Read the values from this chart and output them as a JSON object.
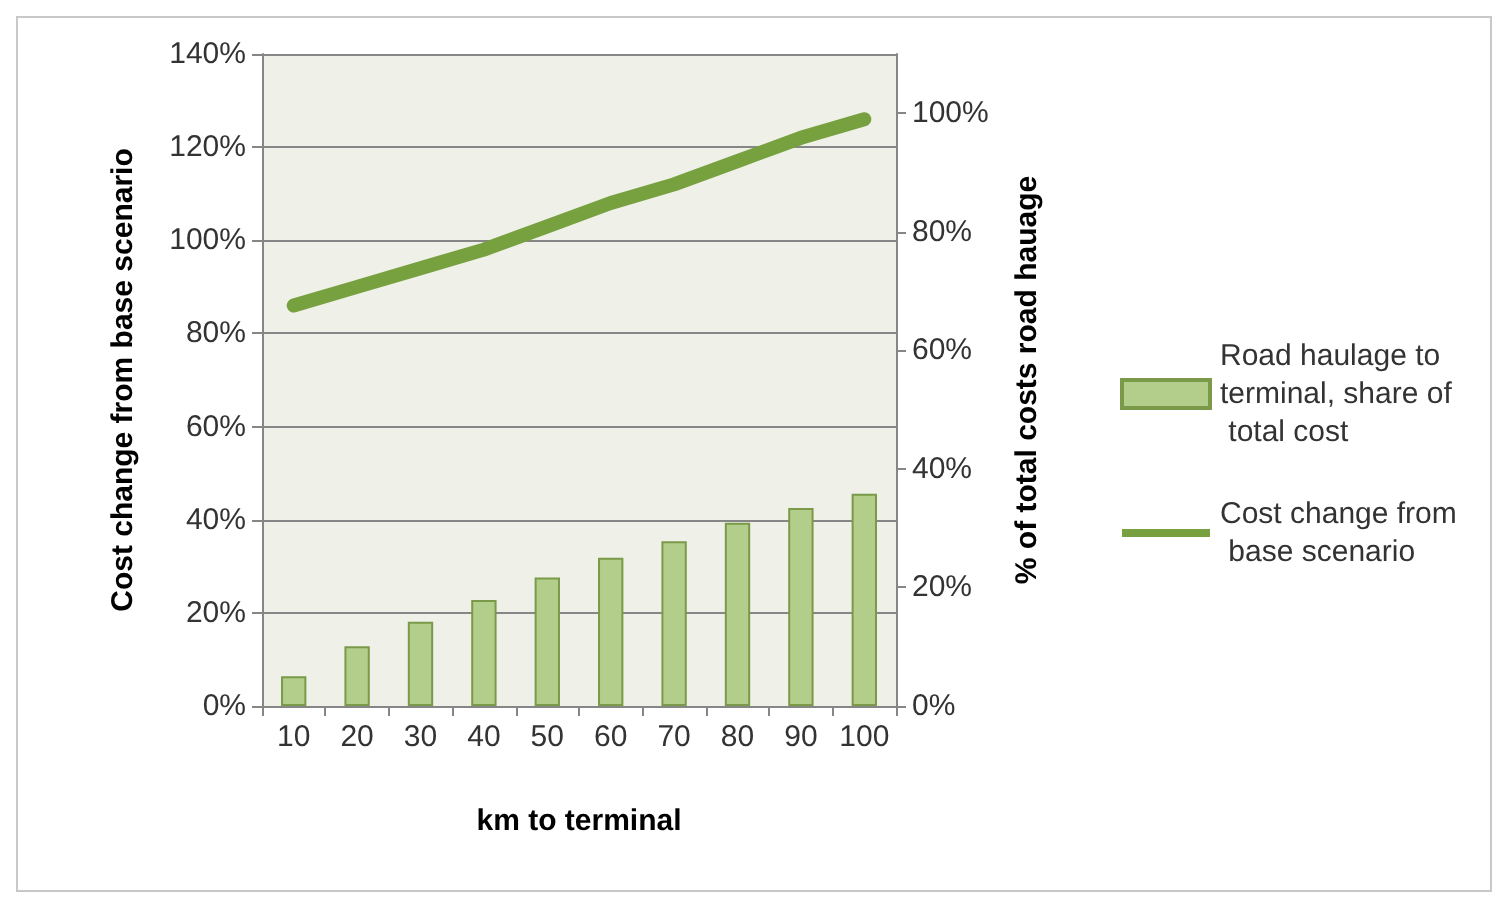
{
  "chart_data": {
    "type": "bar",
    "xlabel": "km to terminal",
    "ylabel": "Cost change from base scenario",
    "y2label": "% of total costs road hauage",
    "categories": [
      "10",
      "20",
      "30",
      "40",
      "50",
      "60",
      "70",
      "80",
      "90",
      "100"
    ],
    "series": [
      {
        "name": "Road haulage to terminal, share of total cost",
        "axis": "y2",
        "color": "#b3cd8a",
        "values": [
          5,
          10.1,
          14.2,
          17.9,
          21.7,
          25,
          27.8,
          30.9,
          33.4,
          35.8
        ]
      },
      {
        "name": "Cost change from base scenario",
        "type": "line",
        "color": "#77a03f",
        "values": [
          86,
          90,
          94,
          98,
          103,
          108,
          112,
          117,
          122,
          126
        ]
      }
    ],
    "ylim": [
      0,
      140
    ],
    "yticks": [
      {
        "value": 0,
        "label": "0%"
      },
      {
        "value": 20,
        "label": "20%"
      },
      {
        "value": 40,
        "label": "40%"
      },
      {
        "value": 60,
        "label": "60%"
      },
      {
        "value": 80,
        "label": "80%"
      },
      {
        "value": 100,
        "label": "100%"
      },
      {
        "value": 120,
        "label": "120%"
      },
      {
        "value": 140,
        "label": "140%"
      }
    ],
    "y2lim": [
      0,
      110
    ],
    "y2ticks": [
      {
        "value": 0,
        "label": "0%"
      },
      {
        "value": 20,
        "label": "20%"
      },
      {
        "value": 40,
        "label": "40%"
      },
      {
        "value": 60,
        "label": "60%"
      },
      {
        "value": 80,
        "label": "80%"
      },
      {
        "value": 100,
        "label": "100%"
      }
    ],
    "grid": "y",
    "legend": "right"
  }
}
